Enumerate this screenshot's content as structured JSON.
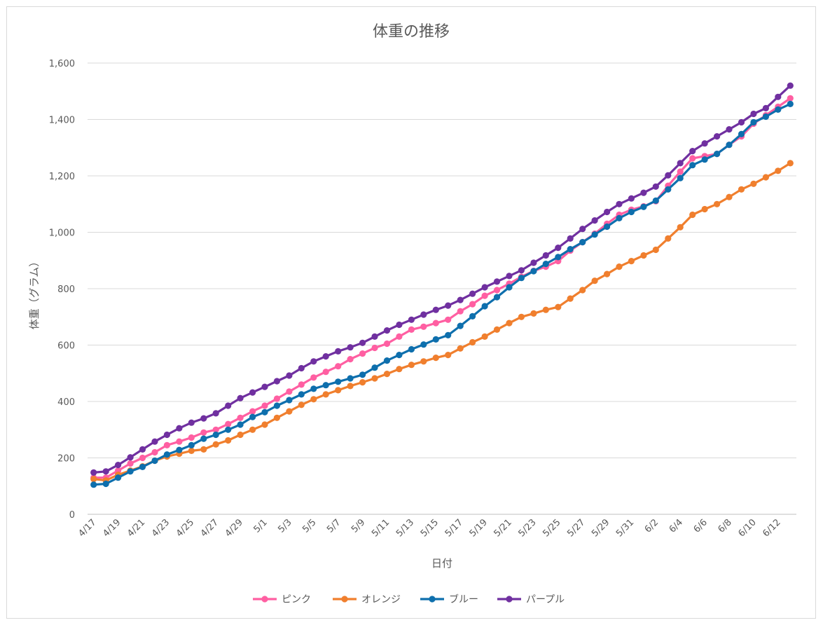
{
  "chart_data": {
    "type": "line",
    "title": "体重の推移",
    "xlabel": "日付",
    "ylabel": "体重（グラム）",
    "ylim": [
      0,
      1600
    ],
    "yticks": [
      0,
      200,
      400,
      600,
      800,
      1000,
      1200,
      1400,
      1600
    ],
    "ytick_labels": [
      "0",
      "200",
      "400",
      "600",
      "800",
      "1,000",
      "1,200",
      "1,400",
      "1,600"
    ],
    "grid": true,
    "legend_position": "bottom",
    "categories": [
      "4/17",
      "4/18",
      "4/19",
      "4/20",
      "4/21",
      "4/22",
      "4/23",
      "4/24",
      "4/25",
      "4/26",
      "4/27",
      "4/28",
      "4/29",
      "4/30",
      "5/1",
      "5/2",
      "5/3",
      "5/4",
      "5/5",
      "5/6",
      "5/7",
      "5/8",
      "5/9",
      "5/10",
      "5/11",
      "5/12",
      "5/13",
      "5/14",
      "5/15",
      "5/16",
      "5/17",
      "5/18",
      "5/19",
      "5/20",
      "5/21",
      "5/22",
      "5/23",
      "5/24",
      "5/25",
      "5/26",
      "5/27",
      "5/28",
      "5/29",
      "5/30",
      "5/31",
      "6/1",
      "6/2",
      "6/3",
      "6/4",
      "6/5",
      "6/6",
      "6/7",
      "6/8",
      "6/9",
      "6/10",
      "6/11",
      "6/12",
      "6/13"
    ],
    "xtick_labels": [
      "4/17",
      "4/19",
      "4/21",
      "4/23",
      "4/25",
      "4/27",
      "4/29",
      "5/1",
      "5/3",
      "5/5",
      "5/7",
      "5/9",
      "5/11",
      "5/13",
      "5/15",
      "5/17",
      "5/19",
      "5/21",
      "5/23",
      "5/25",
      "5/27",
      "5/29",
      "5/31",
      "6/2",
      "6/4",
      "6/6",
      "6/8",
      "6/10",
      "6/12"
    ],
    "series": [
      {
        "name": "ピンク",
        "color": "#ff5fa2",
        "values": [
          130,
          130,
          155,
          180,
          200,
          220,
          245,
          258,
          272,
          290,
          300,
          320,
          342,
          365,
          385,
          410,
          435,
          460,
          485,
          505,
          525,
          550,
          570,
          590,
          605,
          630,
          655,
          665,
          678,
          690,
          720,
          745,
          775,
          795,
          818,
          842,
          863,
          878,
          898,
          935,
          965,
          995,
          1030,
          1062,
          1080,
          1092,
          1110,
          1165,
          1215,
          1262,
          1270,
          1278,
          1310,
          1340,
          1385,
          1415,
          1445,
          1475
        ]
      },
      {
        "name": "オレンジ",
        "color": "#f07f2e",
        "values": [
          125,
          120,
          140,
          155,
          170,
          190,
          205,
          215,
          225,
          230,
          248,
          262,
          282,
          300,
          318,
          342,
          365,
          388,
          408,
          425,
          440,
          455,
          468,
          482,
          498,
          515,
          530,
          542,
          555,
          565,
          588,
          610,
          630,
          655,
          678,
          700,
          712,
          725,
          735,
          765,
          795,
          828,
          852,
          878,
          898,
          918,
          938,
          978,
          1018,
          1062,
          1082,
          1100,
          1125,
          1152,
          1172,
          1195,
          1218,
          1245
        ]
      },
      {
        "name": "ブルー",
        "color": "#0e6fad",
        "values": [
          105,
          108,
          130,
          152,
          168,
          190,
          212,
          228,
          245,
          268,
          282,
          300,
          318,
          345,
          362,
          385,
          405,
          425,
          445,
          458,
          470,
          482,
          495,
          520,
          545,
          565,
          585,
          602,
          620,
          635,
          668,
          702,
          738,
          770,
          805,
          838,
          862,
          888,
          912,
          940,
          965,
          992,
          1020,
          1050,
          1072,
          1090,
          1112,
          1152,
          1192,
          1238,
          1258,
          1278,
          1310,
          1348,
          1390,
          1410,
          1435,
          1455
        ]
      },
      {
        "name": "パープル",
        "color": "#7030a0",
        "values": [
          148,
          152,
          175,
          202,
          230,
          258,
          282,
          305,
          325,
          340,
          358,
          385,
          412,
          432,
          452,
          472,
          492,
          518,
          542,
          560,
          578,
          592,
          608,
          630,
          652,
          672,
          690,
          708,
          725,
          740,
          760,
          782,
          805,
          825,
          845,
          865,
          892,
          918,
          945,
          978,
          1012,
          1042,
          1072,
          1100,
          1120,
          1140,
          1162,
          1202,
          1245,
          1288,
          1315,
          1340,
          1365,
          1390,
          1420,
          1440,
          1480,
          1520
        ]
      }
    ]
  }
}
